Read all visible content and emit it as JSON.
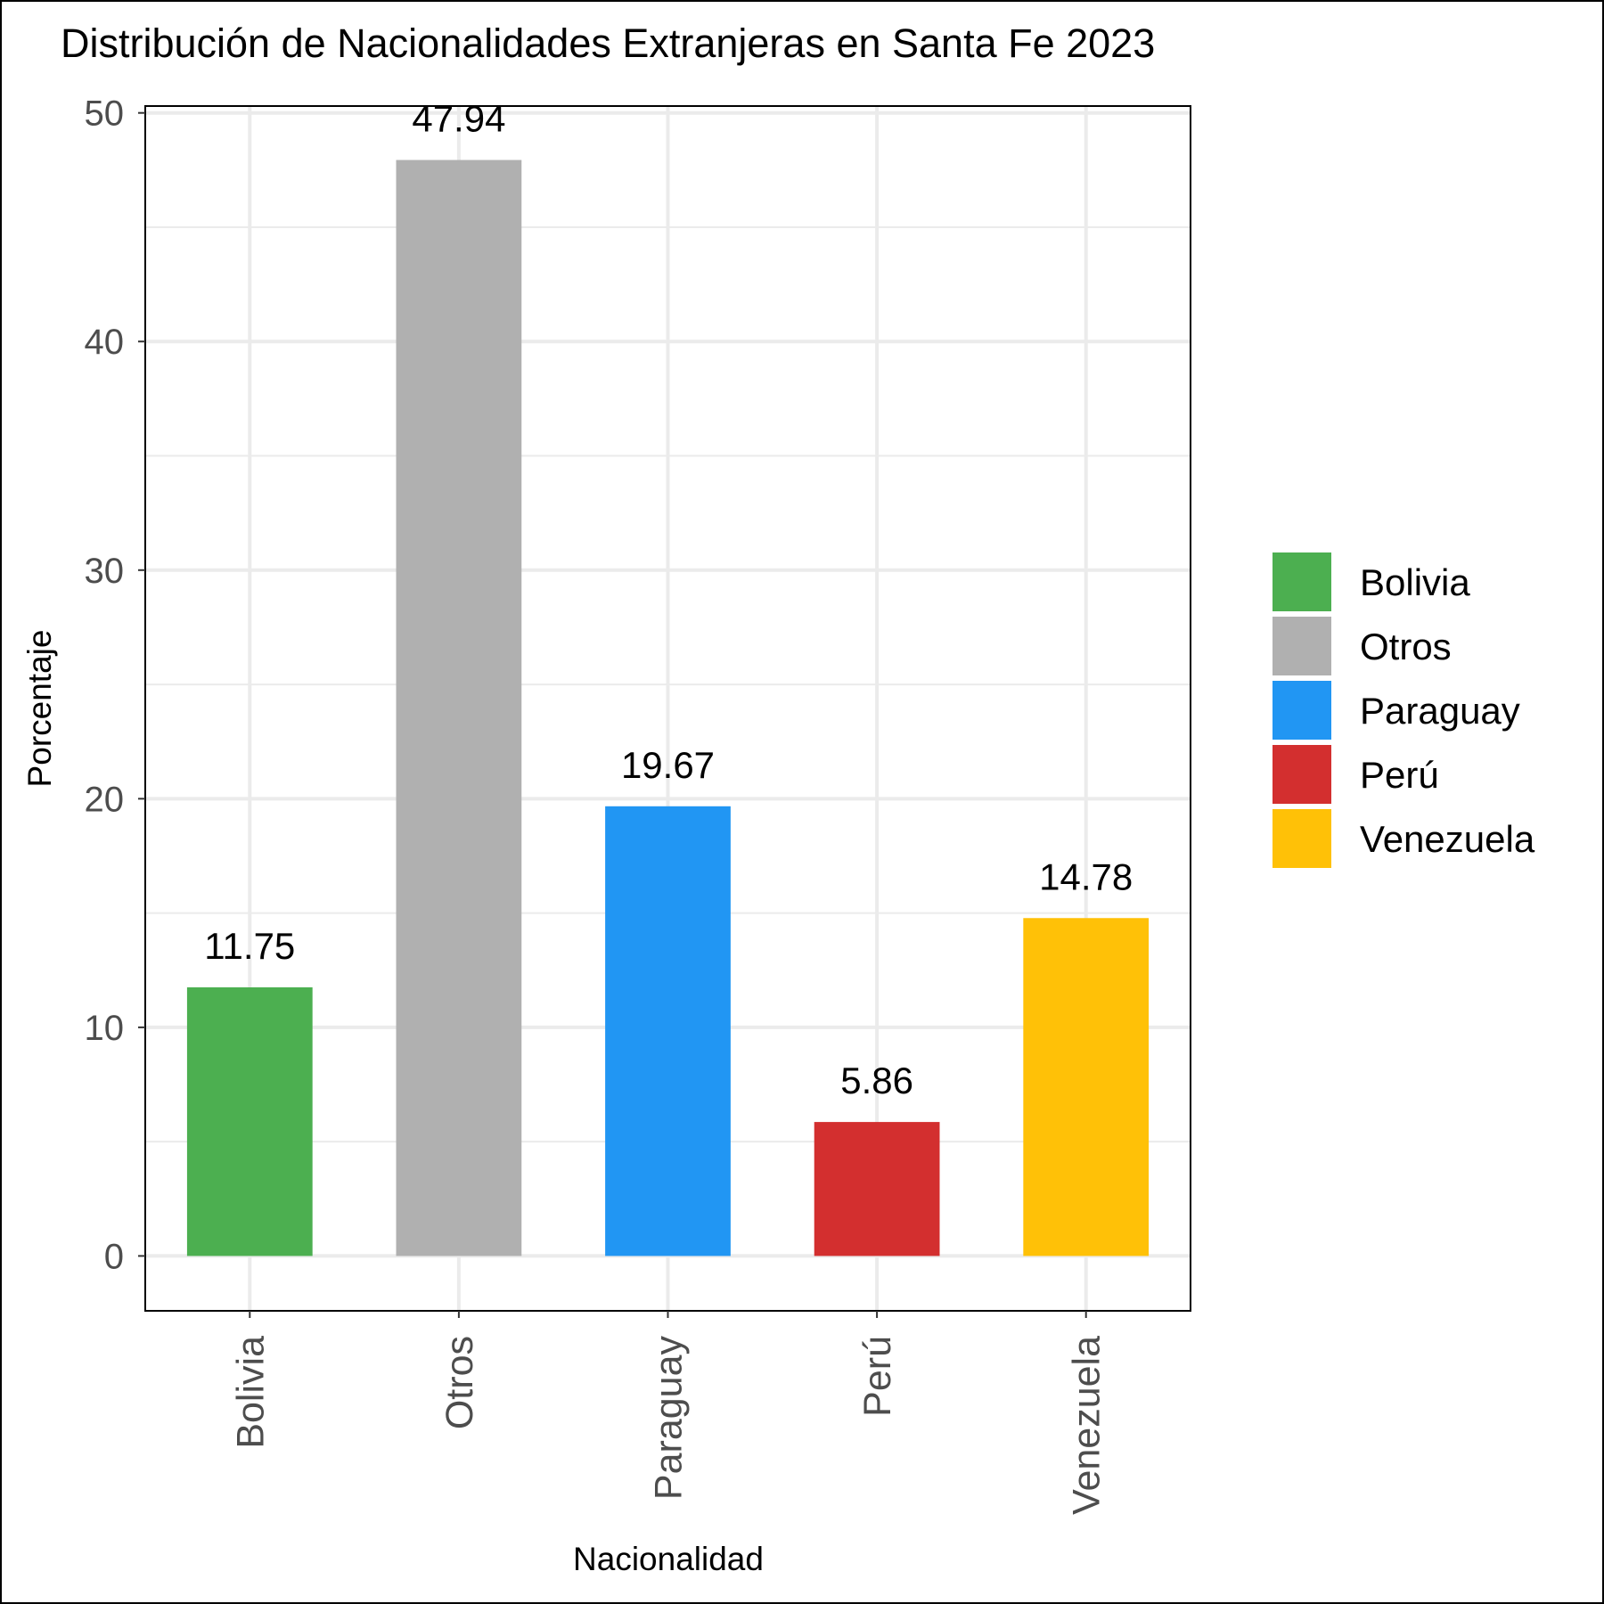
{
  "chart_data": {
    "type": "bar",
    "title": "Distribución de Nacionalidades Extranjeras en Santa Fe 2023",
    "xlabel": "Nacionalidad",
    "ylabel": "Porcentaje",
    "categories": [
      "Bolivia",
      "Otros",
      "Paraguay",
      "Perú",
      "Venezuela"
    ],
    "values": [
      11.75,
      47.94,
      19.67,
      5.86,
      14.78
    ],
    "value_labels": [
      "11.75",
      "47.94",
      "19.67",
      "5.86",
      "14.78"
    ],
    "colors": [
      "#4CAF50",
      "#B0B0B0",
      "#2196F3",
      "#D32F2F",
      "#FFC107"
    ],
    "y_ticks": [
      0,
      10,
      20,
      30,
      40,
      50
    ],
    "y_tick_labels": [
      "0",
      "10",
      "20",
      "30",
      "40",
      "50"
    ],
    "ylim": [
      -2.4,
      50.3
    ],
    "grid": true,
    "legend": {
      "position": "right",
      "entries": [
        "Bolivia",
        "Otros",
        "Paraguay",
        "Perú",
        "Venezuela"
      ]
    }
  }
}
